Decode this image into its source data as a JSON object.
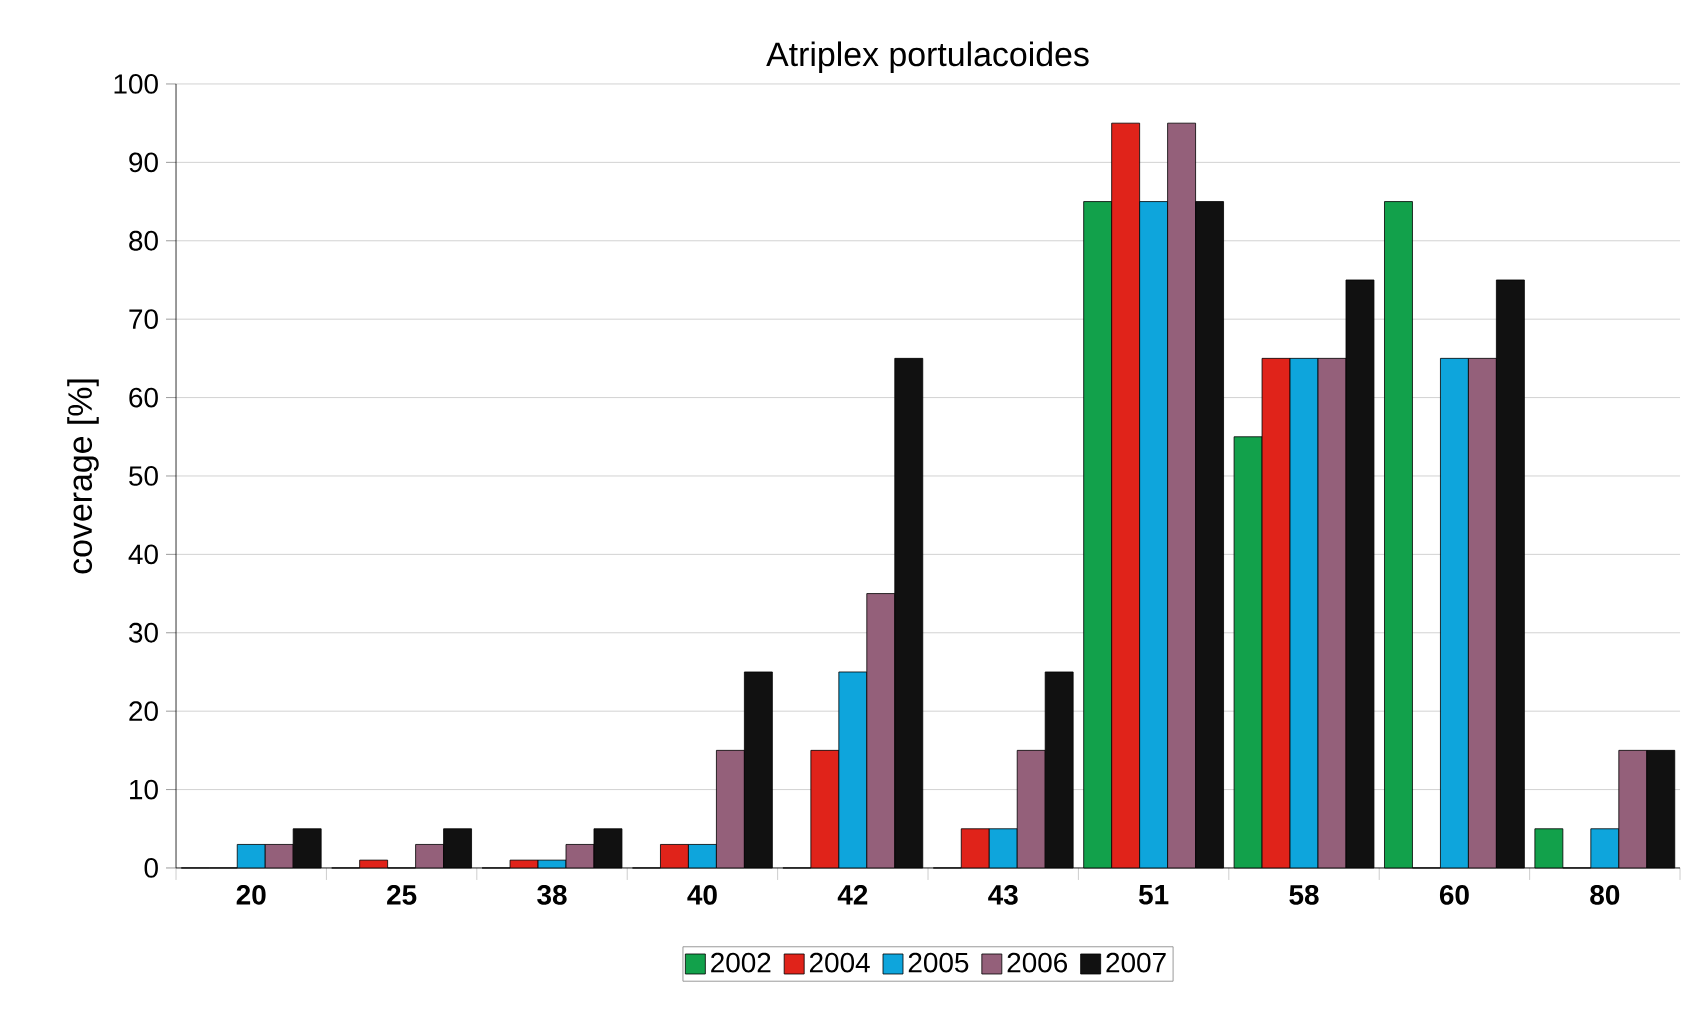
{
  "chart_data": {
    "type": "bar",
    "title": "Atriplex portulacoides",
    "ylabel": "coverage [%]",
    "categories": [
      "20",
      "25",
      "38",
      "40",
      "42",
      "43",
      "51",
      "58",
      "60",
      "80"
    ],
    "series": [
      {
        "name": "2002",
        "color": "#12a14b",
        "values": [
          0,
          0,
          0,
          0,
          0,
          0,
          85,
          55,
          85,
          5
        ]
      },
      {
        "name": "2004",
        "color": "#e0231a",
        "values": [
          0,
          1,
          1,
          3,
          15,
          5,
          95,
          65,
          0,
          0
        ]
      },
      {
        "name": "2005",
        "color": "#0ea5dc",
        "values": [
          3,
          0,
          1,
          3,
          25,
          5,
          85,
          65,
          65,
          5
        ]
      },
      {
        "name": "2006",
        "color": "#94607a",
        "values": [
          3,
          3,
          3,
          15,
          35,
          15,
          95,
          65,
          65,
          15
        ]
      },
      {
        "name": "2007",
        "color": "#111111",
        "values": [
          5,
          5,
          5,
          25,
          65,
          25,
          85,
          75,
          75,
          15
        ]
      }
    ],
    "ylim": [
      0,
      100
    ],
    "yticks": [
      0,
      10,
      20,
      30,
      40,
      50,
      60,
      70,
      80,
      90,
      100
    ],
    "grid": "y",
    "legend": "bottom"
  }
}
